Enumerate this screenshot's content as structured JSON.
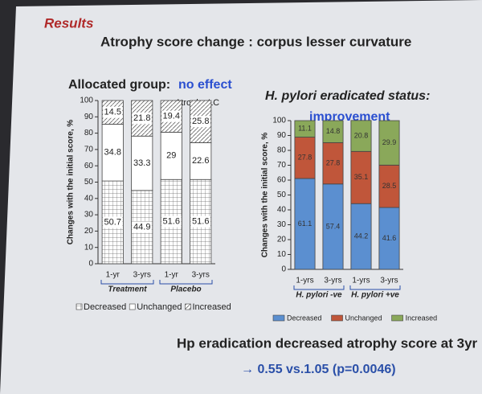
{
  "slide": {
    "section": "Results",
    "title": "Atrophy score change : corpus lesser curvature",
    "conclusion": "Hp eradication decreased atrophy score at 3yr",
    "conclusion_detail": "→ 0.55 vs.1.05 (p=0.0046)"
  },
  "chart_data": [
    {
      "type": "stacked-bar",
      "title": "Allocated group:",
      "title_emphasis": "no effect",
      "annotation": "Atrophy LC",
      "y_label": "Changes with the initial score, %",
      "categories": [
        "1-yr",
        "3-yrs",
        "1-yr",
        "3-yrs"
      ],
      "groups": [
        "Treatment",
        "Placebo"
      ],
      "ylim": [
        0,
        100
      ],
      "yticks": [
        0,
        10,
        20,
        30,
        40,
        50,
        60,
        70,
        80,
        90,
        100
      ],
      "series": [
        {
          "name": "Decreased",
          "color": "#ffffff",
          "pattern": "grid",
          "values": [
            50.7,
            44.9,
            51.6,
            51.6
          ]
        },
        {
          "name": "Unchanged",
          "color": "#ffffff",
          "pattern": "none",
          "values": [
            34.8,
            33.3,
            29,
            22.6
          ]
        },
        {
          "name": "Increased",
          "color": "#ffffff",
          "pattern": "diagonal",
          "values": [
            14.5,
            21.8,
            19.4,
            25.8
          ]
        }
      ]
    },
    {
      "type": "stacked-bar",
      "title": "H. pylori eradicated status:",
      "title_emphasis": "improvement",
      "y_label": "Changes with the initial score, %",
      "categories": [
        "1-yrs",
        "3-yrs",
        "1-yrs",
        "3-yrs"
      ],
      "groups": [
        "H. pylori -ve",
        "H. pylori +ve"
      ],
      "ylim": [
        0,
        100
      ],
      "yticks": [
        0,
        10,
        20,
        30,
        40,
        50,
        60,
        70,
        80,
        90,
        100
      ],
      "series": [
        {
          "name": "Decreased",
          "color": "#5b8fd0",
          "pattern": "none",
          "values": [
            61.1,
            57.4,
            44.2,
            41.6
          ]
        },
        {
          "name": "Unchanged",
          "color": "#c0563a",
          "pattern": "none",
          "values": [
            27.8,
            27.8,
            35.1,
            28.5
          ]
        },
        {
          "name": "Increased",
          "color": "#8aa85a",
          "pattern": "none",
          "values": [
            11.1,
            14.8,
            20.8,
            29.9
          ]
        }
      ]
    }
  ]
}
